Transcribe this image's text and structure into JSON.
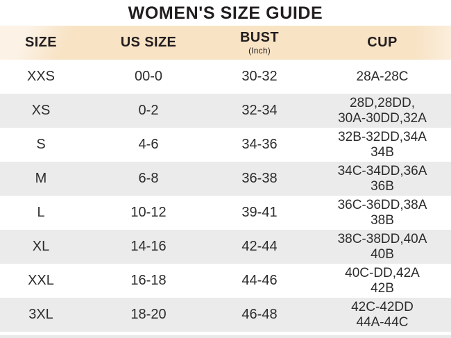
{
  "title": "WOMEN'S SIZE GUIDE",
  "colors": {
    "header_bg": "#f8e3c5",
    "alt_row_bg": "#ebebeb",
    "title_text": "#221e1f",
    "cell_text": "#2c2c2c"
  },
  "table": {
    "columns": [
      {
        "label": "SIZE",
        "sub": ""
      },
      {
        "label": "US SIZE",
        "sub": ""
      },
      {
        "label": "BUST",
        "sub": "(Inch)"
      },
      {
        "label": "CUP",
        "sub": ""
      }
    ],
    "rows": [
      {
        "size": "XXS",
        "us_size": "00-0",
        "bust": "30-32",
        "cup": [
          "28A-28C"
        ]
      },
      {
        "size": "XS",
        "us_size": "0-2",
        "bust": "32-34",
        "cup": [
          "28D,28DD,",
          "30A-30DD,32A"
        ]
      },
      {
        "size": "S",
        "us_size": "4-6",
        "bust": "34-36",
        "cup": [
          "32B-32DD,34A",
          "34B"
        ]
      },
      {
        "size": "M",
        "us_size": "6-8",
        "bust": "36-38",
        "cup": [
          "34C-34DD,36A",
          "36B"
        ]
      },
      {
        "size": "L",
        "us_size": "10-12",
        "bust": "39-41",
        "cup": [
          "36C-36DD,38A",
          "38B"
        ]
      },
      {
        "size": "XL",
        "us_size": "14-16",
        "bust": "42-44",
        "cup": [
          "38C-38DD,40A",
          "40B"
        ]
      },
      {
        "size": "XXL",
        "us_size": "16-18",
        "bust": "44-46",
        "cup": [
          "40C-DD,42A",
          "42B"
        ]
      },
      {
        "size": "3XL",
        "us_size": "18-20",
        "bust": "46-48",
        "cup": [
          "42C-42DD",
          "44A-44C"
        ]
      }
    ]
  }
}
